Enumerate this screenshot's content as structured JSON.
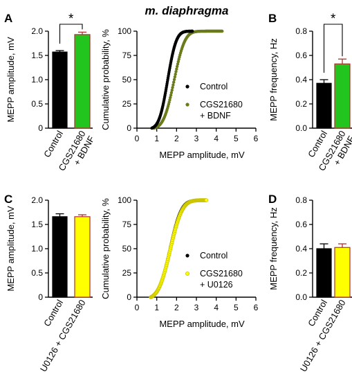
{
  "figure": {
    "title": "m. diaphragma",
    "colors": {
      "control": "#000000",
      "bdnf_fill": "#22c41e",
      "bdnf_point": "#6b7a1a",
      "u0126_fill": "#ffff00",
      "bar_edge": "#b03030",
      "u0126_point_edge": "#c9c200"
    }
  },
  "chart_data": [
    {
      "panel": "A",
      "type": "bar",
      "categories": [
        "Control",
        "CGS21680\n+ BDNF"
      ],
      "values": [
        1.57,
        1.93
      ],
      "errors": [
        0.03,
        0.05
      ],
      "fills": [
        "#000000",
        "#22c41e"
      ],
      "ylabel": "MEPP amplitude, mV",
      "ylim": [
        0,
        2.0
      ],
      "yticks": [
        "0",
        "0.5",
        "1.0",
        "1.5",
        "2.0"
      ],
      "significance": "*"
    },
    {
      "panel": "A2",
      "type": "line",
      "xlabel": "MEPP amplitude, mV",
      "ylabel": "Cumulative probability, %",
      "xlim": [
        0,
        6
      ],
      "ylim": [
        0,
        100
      ],
      "xticks": [
        "0",
        "1",
        "2",
        "3",
        "4",
        "5",
        "6"
      ],
      "yticks": [
        "0",
        "25",
        "50",
        "75",
        "100"
      ],
      "series": [
        {
          "name": "Control",
          "mu": 1.55,
          "sigma": 0.34,
          "min": 0.75,
          "max": 2.8,
          "color": "#000000"
        },
        {
          "name": "CGS21680\n+ BDNF",
          "mu": 1.88,
          "sigma": 0.42,
          "min": 0.85,
          "max": 4.3,
          "color": "#6b7a1a"
        }
      ]
    },
    {
      "panel": "B",
      "type": "bar",
      "categories": [
        "Control",
        "CGS21680\n+ BDNF"
      ],
      "values": [
        0.37,
        0.53
      ],
      "errors": [
        0.03,
        0.04
      ],
      "fills": [
        "#000000",
        "#22c41e"
      ],
      "ylabel": "MEPP frequency, Hz",
      "ylim": [
        0,
        0.8
      ],
      "yticks": [
        "0.0",
        "0.2",
        "0.4",
        "0.6",
        "0.8"
      ],
      "significance": "*"
    },
    {
      "panel": "C",
      "type": "bar",
      "categories": [
        "Control",
        "U0126 + CGS21680"
      ],
      "values": [
        1.66,
        1.66
      ],
      "errors": [
        0.06,
        0.04
      ],
      "fills": [
        "#000000",
        "#ffff00"
      ],
      "ylabel": "MEPP amplitude, mV",
      "ylim": [
        0,
        2.0
      ],
      "yticks": [
        "0",
        "0.5",
        "1.0",
        "1.5",
        "2.0"
      ]
    },
    {
      "panel": "C2",
      "type": "line",
      "xlabel": "MEPP amplitude, mV",
      "ylabel": "Cumulative probability, %",
      "xlim": [
        0,
        6
      ],
      "ylim": [
        0,
        100
      ],
      "xticks": [
        "0",
        "1",
        "2",
        "3",
        "4",
        "5",
        "6"
      ],
      "yticks": [
        "0",
        "25",
        "50",
        "75",
        "100"
      ],
      "series": [
        {
          "name": "Control",
          "mu": 1.66,
          "sigma": 0.45,
          "min": 0.72,
          "max": 3.35,
          "color": "#000000"
        },
        {
          "name": "CGS21680\n+ U0126",
          "mu": 1.68,
          "sigma": 0.47,
          "min": 0.7,
          "max": 3.5,
          "color": "#ffff00"
        }
      ]
    },
    {
      "panel": "D",
      "type": "bar",
      "categories": [
        "Control",
        "U0126 + CGS21680"
      ],
      "values": [
        0.4,
        0.41
      ],
      "errors": [
        0.04,
        0.03
      ],
      "fills": [
        "#000000",
        "#ffff00"
      ],
      "ylabel": "MEPP frequency, Hz",
      "ylim": [
        0,
        0.8
      ],
      "yticks": [
        "0.0",
        "0.2",
        "0.4",
        "0.6",
        "0.8"
      ]
    }
  ]
}
